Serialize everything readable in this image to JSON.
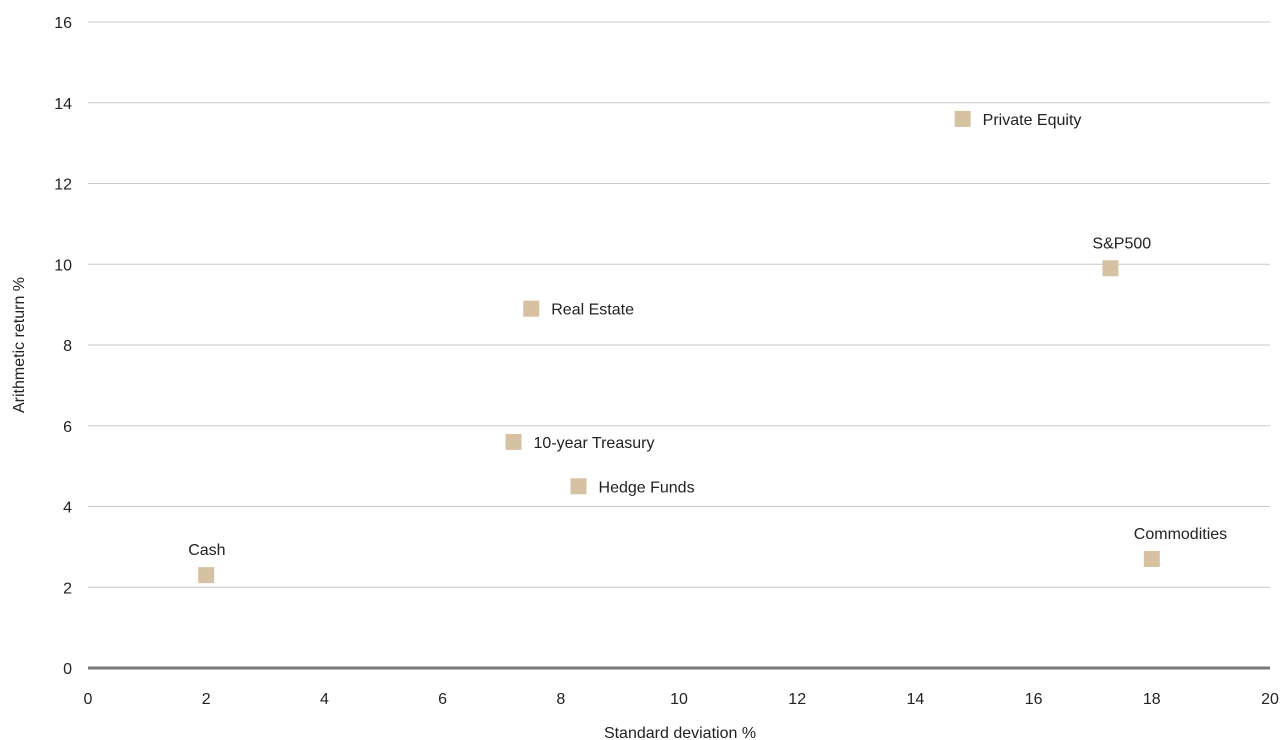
{
  "chart_data": {
    "type": "scatter",
    "title": "",
    "xlabel": "Standard deviation %",
    "ylabel": "Arithmetic return %",
    "xlim": [
      0,
      20
    ],
    "ylim": [
      0,
      16
    ],
    "xticks": [
      0,
      2,
      4,
      6,
      8,
      10,
      12,
      14,
      16,
      18,
      20
    ],
    "yticks": [
      0,
      2,
      4,
      6,
      8,
      10,
      12,
      14,
      16
    ],
    "grid": "horizontal",
    "legend": "none",
    "marker_color": "#d7c1a3",
    "points": [
      {
        "label": "Cash",
        "x": 2.0,
        "y": 2.3,
        "label_position": "above"
      },
      {
        "label": "10-year Treasury",
        "x": 7.2,
        "y": 5.6,
        "label_position": "right"
      },
      {
        "label": "Hedge Funds",
        "x": 8.3,
        "y": 4.5,
        "label_position": "right"
      },
      {
        "label": "Real Estate",
        "x": 7.5,
        "y": 8.9,
        "label_position": "right"
      },
      {
        "label": "Private Equity",
        "x": 14.8,
        "y": 13.6,
        "label_position": "right"
      },
      {
        "label": "S&P500",
        "x": 17.3,
        "y": 9.9,
        "label_position": "above"
      },
      {
        "label": "Commodities",
        "x": 18.0,
        "y": 2.7,
        "label_position": "above"
      }
    ]
  }
}
